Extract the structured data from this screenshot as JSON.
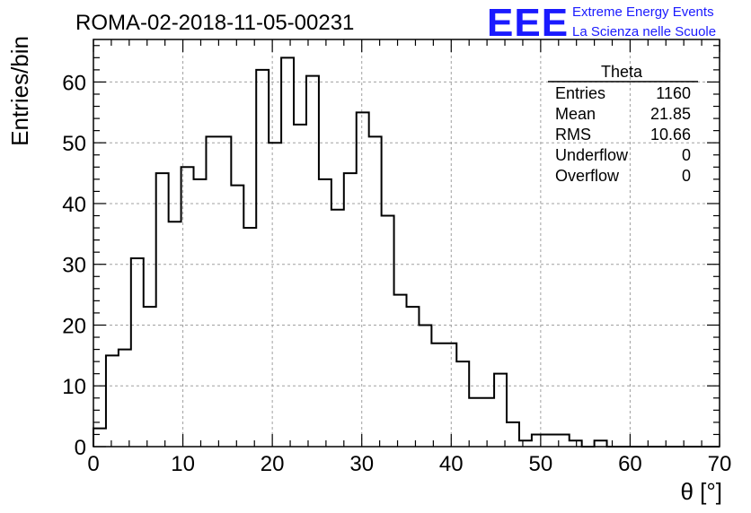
{
  "header": {
    "title": "ROMA-02-2018-11-05-00231",
    "logo_mark": "EEE",
    "logo_line1": "Extreme Energy Events",
    "logo_line2": "La Scienza nelle Scuole"
  },
  "stats": {
    "name": "Theta",
    "rows": [
      {
        "label": "Entries",
        "value": "1160"
      },
      {
        "label": "Mean",
        "value": "21.85"
      },
      {
        "label": "RMS",
        "value": "10.66"
      },
      {
        "label": "Underflow",
        "value": "0"
      },
      {
        "label": "Overflow",
        "value": "0"
      }
    ]
  },
  "chart_data": {
    "type": "histogram",
    "title": "ROMA-02-2018-11-05-00231",
    "xlabel": "θ [°]",
    "ylabel": "Entries/bin",
    "xlim": [
      0,
      70
    ],
    "ylim": [
      0,
      67
    ],
    "xticks": [
      0,
      10,
      20,
      30,
      40,
      50,
      60,
      70
    ],
    "yticks": [
      0,
      10,
      20,
      30,
      40,
      50,
      60
    ],
    "grid": true,
    "bin_edges_start": 0,
    "bin_width": 1.4,
    "values": [
      3,
      15,
      16,
      31,
      23,
      45,
      37,
      46,
      44,
      51,
      51,
      43,
      36,
      62,
      50,
      64,
      53,
      61,
      44,
      39,
      45,
      55,
      51,
      38,
      25,
      23,
      20,
      17,
      17,
      14,
      8,
      8,
      12,
      4,
      1,
      2,
      2,
      2,
      1,
      0,
      1,
      0,
      0,
      0,
      0,
      0,
      0,
      0,
      0,
      0
    ],
    "line_color": "#000000",
    "grid_color": "#a0a0a0"
  }
}
